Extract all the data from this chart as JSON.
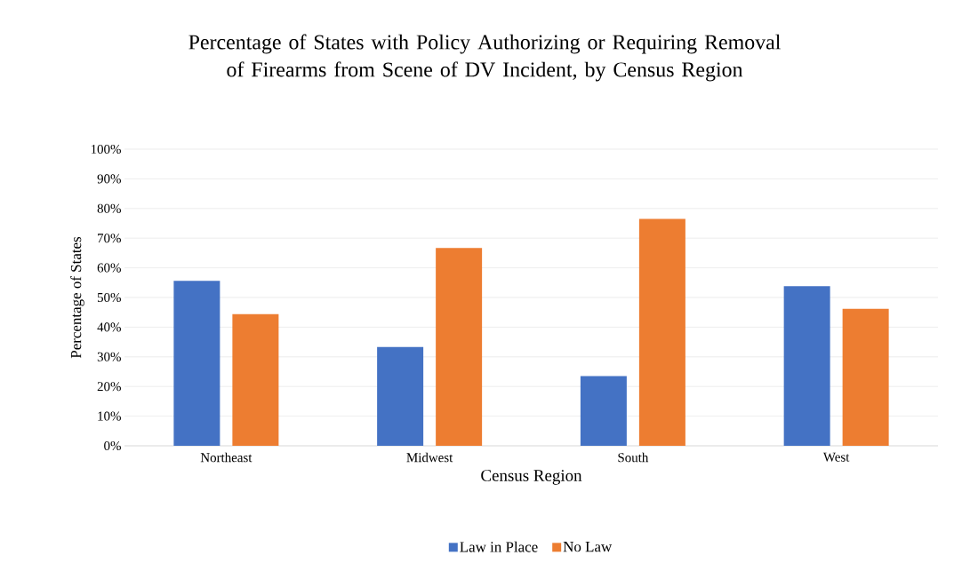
{
  "chart_data": {
    "type": "bar",
    "title": "Percentage of States with Policy Authorizing or Requiring Removal of Firearms from Scene of DV Incident, by Census Region",
    "xlabel": "Census Region",
    "ylabel": "Percentage of States",
    "categories": [
      "Northeast",
      "Midwest",
      "South",
      "West"
    ],
    "series": [
      {
        "name": "Law in Place",
        "color": "#4472c4",
        "values": [
          55.6,
          33.3,
          23.5,
          53.8
        ]
      },
      {
        "name": "No Law",
        "color": "#ed7d31",
        "values": [
          44.4,
          66.7,
          76.5,
          46.2
        ]
      }
    ],
    "ylim": [
      0,
      100
    ],
    "yticks": [
      {
        "value": 0,
        "label": "0%"
      },
      {
        "value": 10,
        "label": "10%"
      },
      {
        "value": 20,
        "label": "20%"
      },
      {
        "value": 30,
        "label": "30%"
      },
      {
        "value": 40,
        "label": "40%"
      },
      {
        "value": 50,
        "label": "50%"
      },
      {
        "value": 60,
        "label": "60%"
      },
      {
        "value": 70,
        "label": "70%"
      },
      {
        "value": 80,
        "label": "80%"
      },
      {
        "value": 90,
        "label": "90%"
      },
      {
        "value": 100,
        "label": "100%"
      }
    ],
    "grid": "y",
    "legend": "bottom"
  }
}
